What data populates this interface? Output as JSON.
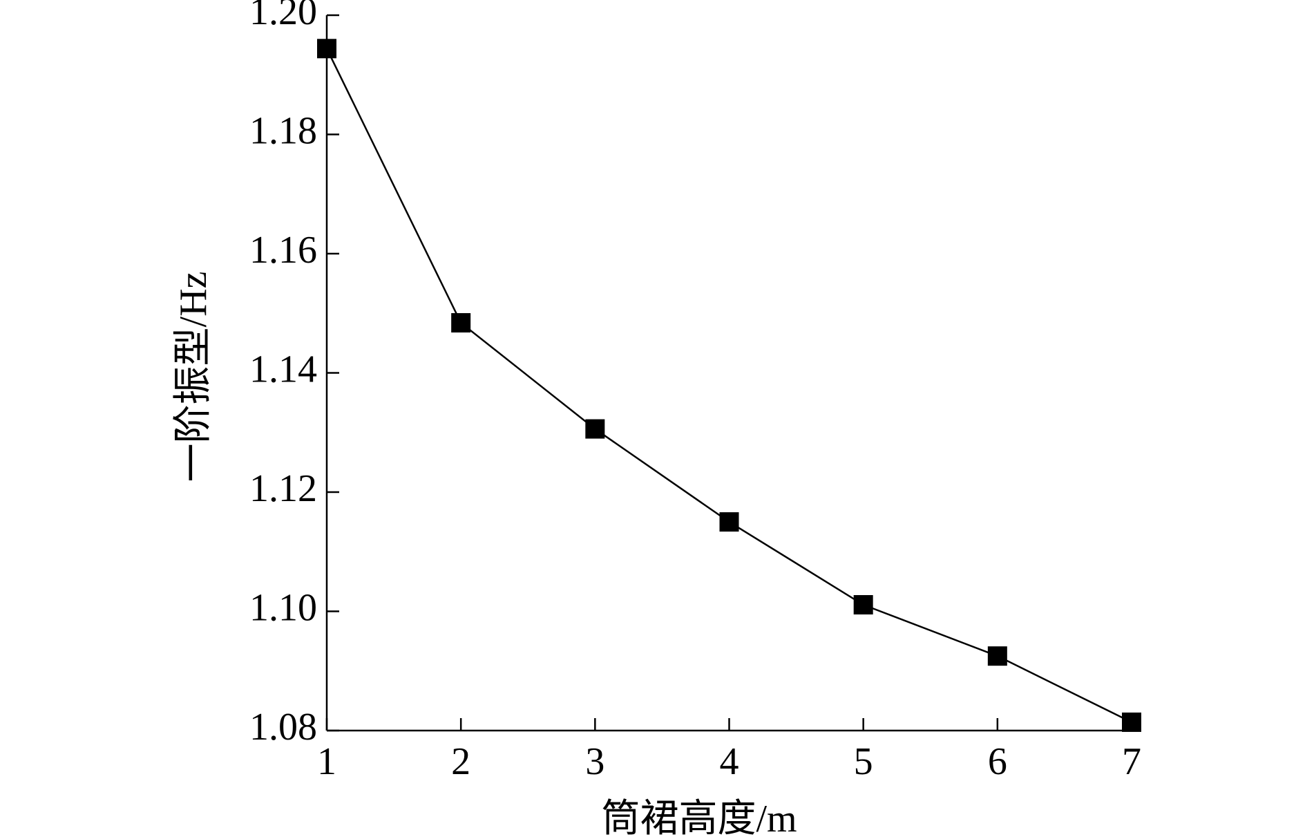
{
  "chart_data": {
    "type": "line",
    "x_label": "筒裙高度/m",
    "y_label": "一阶振型/Hz",
    "x": [
      1,
      2,
      3,
      4,
      5,
      6,
      7
    ],
    "series": [
      {
        "color": "#000000",
        "values": [
          1.1944,
          1.1484,
          1.1306,
          1.115,
          1.1011,
          1.0925,
          1.0814
        ]
      }
    ],
    "xlim": [
      1,
      7
    ],
    "xticks": [
      1,
      2,
      3,
      4,
      5,
      6,
      7
    ],
    "ylim": [
      1.08,
      1.2
    ],
    "yticks": [
      1.08,
      {
        "value": 1.1,
        "label": "1.10"
      },
      1.12,
      1.14,
      1.16,
      1.18,
      {
        "value": 1.2,
        "label": "1.20"
      }
    ],
    "grid": false
  }
}
